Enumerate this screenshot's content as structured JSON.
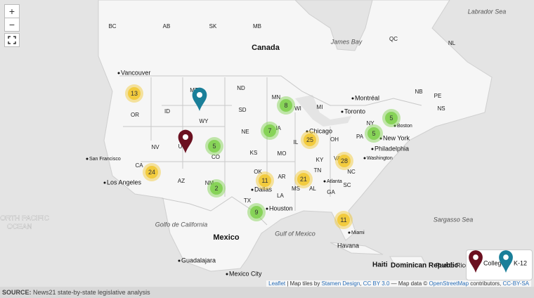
{
  "map": {
    "labels": {
      "countries": [
        "Canada",
        "Mexico"
      ],
      "water": [
        "Labrador Sea",
        "James Bay",
        "NORTH PACIFIC",
        "OCEAN",
        "Golfo de California",
        "Gulf of Mexico",
        "Sargasso Sea"
      ],
      "regions": [
        "BC",
        "AB",
        "SK",
        "MB",
        "QC",
        "NL",
        "NB",
        "PE",
        "NS",
        "MT",
        "ND",
        "MN",
        "WI",
        "MI",
        "OR",
        "ID",
        "WY",
        "SD",
        "NE",
        "IA",
        "IL",
        "OH",
        "PA",
        "NY",
        "NV",
        "UT",
        "CO",
        "KS",
        "MO",
        "KY",
        "VA",
        "CA",
        "AZ",
        "NM",
        "OK",
        "AR",
        "TN",
        "NC",
        "SC",
        "MS",
        "AL",
        "GA",
        "TX",
        "LA"
      ],
      "cities": [
        "Vancouver",
        "San Francisco",
        "Los Angeles",
        "Chicago",
        "Toronto",
        "Montréal",
        "Boston",
        "New York",
        "Philadelphia",
        "Washington",
        "Atlanta",
        "Dallas",
        "Houston",
        "Miami",
        "Havana",
        "Haiti",
        "Dominican Republic",
        "Puerto Rico",
        "Guadalajara",
        "Mexico City"
      ]
    },
    "clusters": [
      {
        "count": 13,
        "color": "#f1c72e"
      },
      {
        "count": 8,
        "color": "#7cd04a"
      },
      {
        "count": 7,
        "color": "#7cd04a"
      },
      {
        "count": 25,
        "color": "#f1c72e"
      },
      {
        "count": 5,
        "color": "#7cd04a"
      },
      {
        "count": 5,
        "color": "#7cd04a"
      },
      {
        "count": 5,
        "color": "#7cd04a"
      },
      {
        "count": 24,
        "color": "#f1c72e"
      },
      {
        "count": 28,
        "color": "#f1c72e"
      },
      {
        "count": 11,
        "color": "#f1c72e"
      },
      {
        "count": 21,
        "color": "#f1c72e"
      },
      {
        "count": 2,
        "color": "#7cd04a"
      },
      {
        "count": 9,
        "color": "#7cd04a"
      },
      {
        "count": 11,
        "color": "#f1c72e"
      }
    ],
    "markers": [
      {
        "name": "College",
        "color": "#6b1020"
      },
      {
        "name": "K-12",
        "color": "#1a7f99"
      }
    ]
  },
  "controls": {
    "zoom_in": "+",
    "zoom_out": "−"
  },
  "footer": {
    "source_label": "SOURCE:",
    "source_text": "News21 state-by-state legislative analysis",
    "attribution": [
      {
        "text": "Leaflet",
        "link": true
      },
      {
        "text": " | Map tiles by ",
        "link": false
      },
      {
        "text": "Stamen Design",
        "link": true
      },
      {
        "text": ", ",
        "link": false
      },
      {
        "text": "CC BY 3.0",
        "link": true
      },
      {
        "text": " — Map data © ",
        "link": false
      },
      {
        "text": "OpenStreetMap",
        "link": true
      },
      {
        "text": " contributors, ",
        "link": false
      },
      {
        "text": "CC-BY-SA",
        "link": true
      }
    ]
  }
}
